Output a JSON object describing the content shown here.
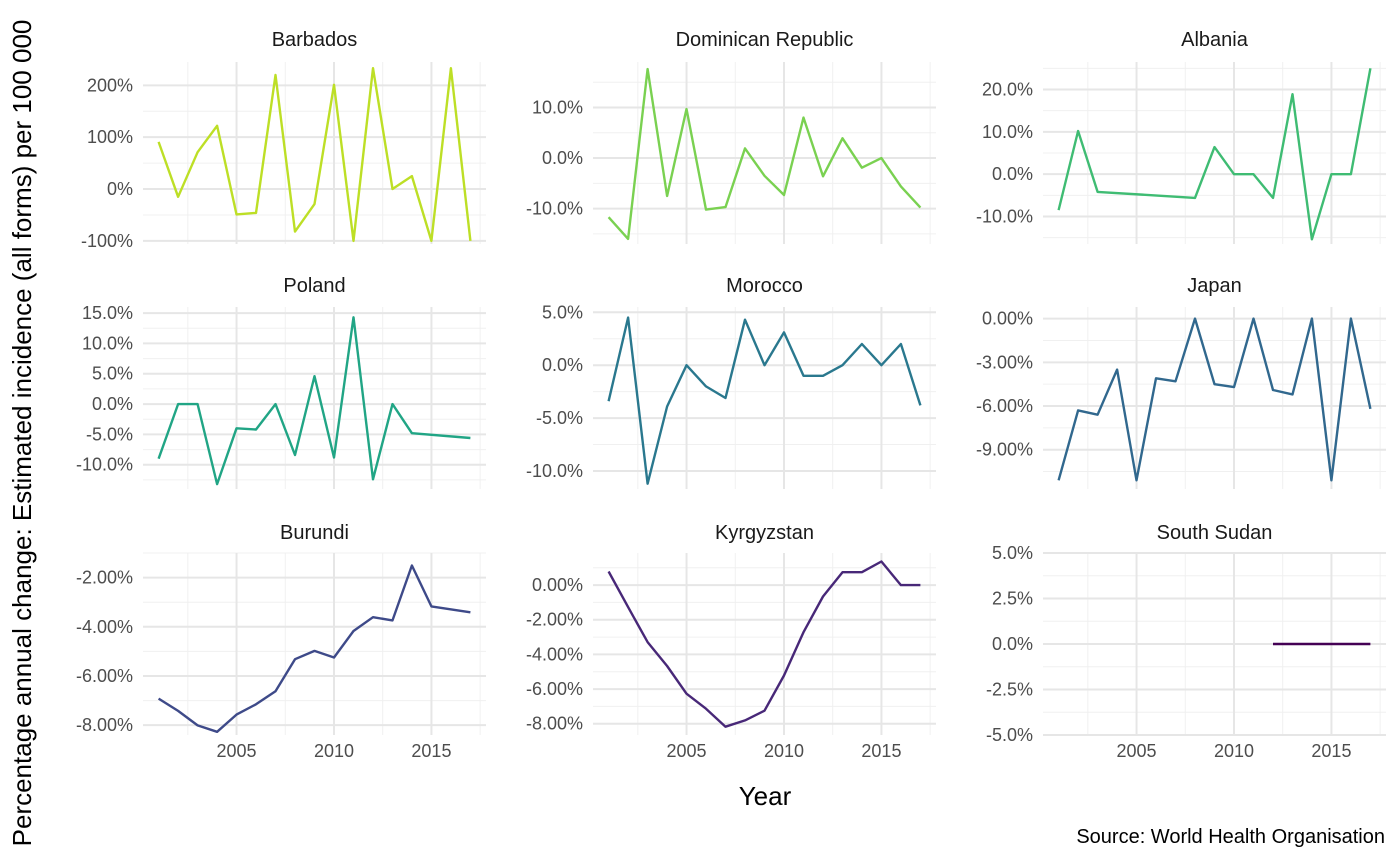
{
  "chart_data": {
    "type": "line",
    "ylabel": "Percentage annual change: Estimated incidence (all forms) per 100 000",
    "xlabel": "Year",
    "caption": "Source: World Health Organisation",
    "x_ticks": [
      2005,
      2010,
      2015
    ],
    "x_tick_labels": [
      "2005",
      "2010",
      "2015"
    ],
    "xlim": [
      2000.2,
      2017.8
    ],
    "panels": [
      {
        "title": "Barbados",
        "color": "#bddf26",
        "ylim": [
          -106,
          245
        ],
        "yticks": [
          -100,
          0,
          100,
          200
        ],
        "ytick_labels": [
          "-100%",
          "0%",
          "100%",
          "200%"
        ],
        "x": [
          2001,
          2002,
          2003,
          2004,
          2005,
          2006,
          2007,
          2008,
          2009,
          2010,
          2011,
          2012,
          2013,
          2014,
          2015,
          2016,
          2017
        ],
        "y": [
          91,
          -15,
          71,
          122,
          -49,
          -46,
          220,
          -82,
          -29,
          201,
          -100,
          233,
          0,
          25,
          -100,
          233,
          -100
        ]
      },
      {
        "title": "Dominican Republic",
        "color": "#7ad151",
        "ylim": [
          -17,
          19
        ],
        "yticks": [
          -10,
          0,
          10
        ],
        "ytick_labels": [
          "-10.0%",
          "0.0%",
          "10.0%"
        ],
        "x": [
          2001,
          2002,
          2003,
          2004,
          2005,
          2006,
          2007,
          2008,
          2009,
          2010,
          2011,
          2012,
          2013,
          2014,
          2015,
          2016,
          2017
        ],
        "y": [
          -11.7,
          -16,
          17.6,
          -7.5,
          9.7,
          -10.2,
          -9.7,
          1.9,
          -3.5,
          -7.3,
          8,
          -3.6,
          3.9,
          -1.9,
          0,
          -5.6,
          -9.8
        ]
      },
      {
        "title": "Albania",
        "color": "#3fbc73",
        "ylim": [
          -16.5,
          26.5
        ],
        "yticks": [
          -10,
          0,
          10,
          20
        ],
        "ytick_labels": [
          "-10.0%",
          "0.0%",
          "10.0%",
          "20.0%"
        ],
        "x": [
          2001,
          2002,
          2003,
          2008,
          2009,
          2010,
          2011,
          2012,
          2013,
          2014,
          2015,
          2016,
          2017
        ],
        "y": [
          -8.5,
          10.2,
          -4.2,
          -5.6,
          6.4,
          0,
          0,
          -5.6,
          18.9,
          -15.4,
          0,
          0,
          25
        ]
      },
      {
        "title": "Poland",
        "color": "#21a585",
        "ylim": [
          -14,
          16
        ],
        "yticks": [
          -10,
          -5,
          0,
          5,
          10,
          15
        ],
        "ytick_labels": [
          "-10.0%",
          "-5.0%",
          "0.0%",
          "5.0%",
          "10.0%",
          "15.0%"
        ],
        "x": [
          2001,
          2002,
          2003,
          2004,
          2005,
          2006,
          2007,
          2008,
          2009,
          2010,
          2011,
          2012,
          2013,
          2014,
          2017
        ],
        "y": [
          -9,
          0,
          0,
          -13.2,
          -4,
          -4.2,
          0,
          -8.4,
          4.6,
          -8.8,
          14.3,
          -12.4,
          0,
          -4.8,
          -5.6
        ]
      },
      {
        "title": "Morocco",
        "color": "#2a788e",
        "ylim": [
          -11.7,
          5.5
        ],
        "yticks": [
          -10,
          -5,
          0,
          5
        ],
        "ytick_labels": [
          "-10.0%",
          "-5.0%",
          "0.0%",
          "5.0%"
        ],
        "x": [
          2001,
          2002,
          2003,
          2004,
          2005,
          2006,
          2007,
          2008,
          2009,
          2010,
          2011,
          2012,
          2013,
          2014,
          2015,
          2016,
          2017
        ],
        "y": [
          -3.4,
          4.5,
          -11.2,
          -3.9,
          0,
          -2,
          -3.1,
          4.3,
          0,
          3.1,
          -1,
          -1,
          0,
          2,
          0,
          2,
          -3.8
        ]
      },
      {
        "title": "Japan",
        "color": "#31688e",
        "ylim": [
          -11.7,
          0.8
        ],
        "yticks": [
          -9,
          -6,
          -3,
          0
        ],
        "ytick_labels": [
          "-9.00%",
          "-6.00%",
          "-3.00%",
          "0.00%"
        ],
        "x": [
          2001,
          2002,
          2003,
          2004,
          2005,
          2006,
          2007,
          2008,
          2009,
          2010,
          2011,
          2012,
          2013,
          2014,
          2015,
          2016,
          2017
        ],
        "y": [
          -11.1,
          -6.3,
          -6.6,
          -3.5,
          -11.1,
          -4.1,
          -4.3,
          0,
          -4.5,
          -4.7,
          0,
          -4.9,
          -5.2,
          0,
          -11.1,
          0,
          -6.2
        ]
      },
      {
        "title": "Burundi",
        "color": "#3e4a89",
        "ylim": [
          -8.4,
          -1.0
        ],
        "yticks": [
          -8,
          -6,
          -4,
          -2
        ],
        "ytick_labels": [
          "-8.00%",
          "-6.00%",
          "-4.00%",
          "-2.00%"
        ],
        "x": [
          2001,
          2002,
          2003,
          2004,
          2005,
          2006,
          2007,
          2008,
          2009,
          2010,
          2011,
          2012,
          2013,
          2014,
          2015,
          2017
        ],
        "y": [
          -6.92,
          -7.42,
          -8.01,
          -8.27,
          -7.57,
          -7.15,
          -6.62,
          -5.32,
          -4.98,
          -5.25,
          -4.17,
          -3.61,
          -3.74,
          -1.51,
          -3.17,
          -3.41
        ]
      },
      {
        "title": "Kyrgyzstan",
        "color": "#482878",
        "ylim": [
          -8.65,
          1.85
        ],
        "yticks": [
          -8,
          -6,
          -4,
          -2,
          0
        ],
        "ytick_labels": [
          "-8.00%",
          "-6.00%",
          "-4.00%",
          "-2.00%",
          "0.00%"
        ],
        "x": [
          2001,
          2002,
          2003,
          2004,
          2005,
          2006,
          2007,
          2008,
          2009,
          2010,
          2011,
          2012,
          2013,
          2014,
          2015,
          2016,
          2017
        ],
        "y": [
          0.78,
          -1.27,
          -3.29,
          -4.67,
          -6.27,
          -7.13,
          -8.17,
          -7.81,
          -7.25,
          -5.22,
          -2.72,
          -0.66,
          0.74,
          0.74,
          1.36,
          0,
          0
        ]
      },
      {
        "title": "South Sudan",
        "color": "#440154",
        "ylim": [
          -5.0,
          5.0
        ],
        "yticks": [
          -5,
          -2.5,
          0,
          2.5,
          5
        ],
        "ytick_labels": [
          "-5.0%",
          "-2.5%",
          "0.0%",
          "2.5%",
          "5.0%"
        ],
        "x": [
          2012,
          2013,
          2014,
          2015,
          2016,
          2017
        ],
        "y": [
          0,
          0,
          0,
          0,
          0,
          0
        ]
      }
    ]
  }
}
